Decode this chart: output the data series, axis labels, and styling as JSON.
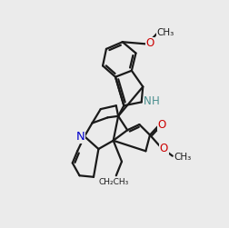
{
  "bg_color": "#ebebeb",
  "bond_color": "#1a1a1a",
  "n_color": "#0000cc",
  "nh_color": "#4a8f8f",
  "o_color": "#cc0000",
  "lw": 1.6
}
